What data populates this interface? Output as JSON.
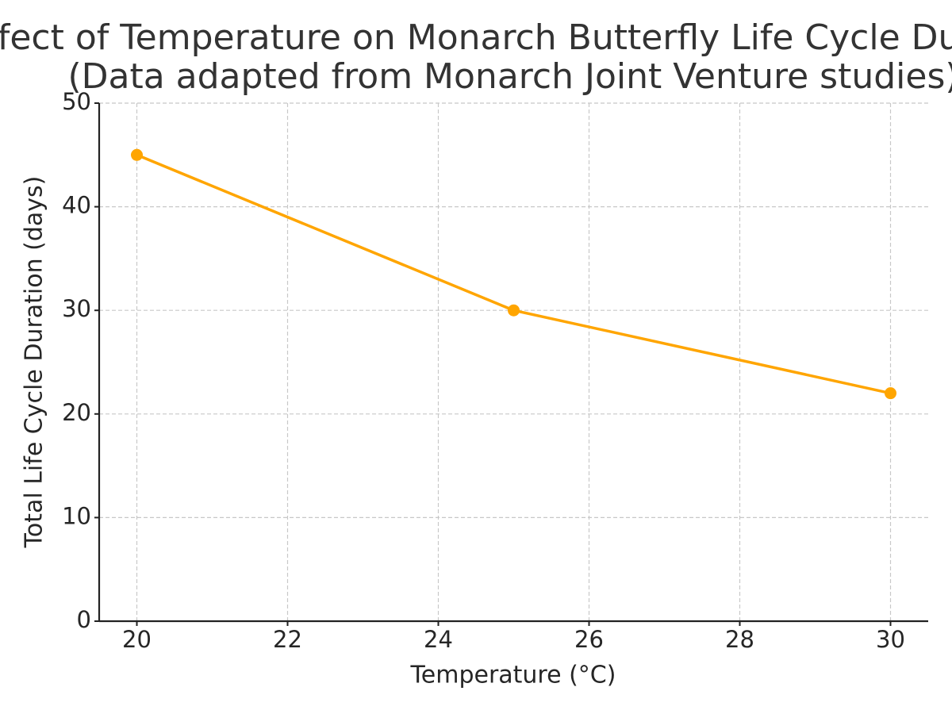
{
  "chart_data": {
    "type": "line",
    "title": "Effect of Temperature on Monarch Butterfly Life Cycle Duration",
    "subtitle": "(Data adapted from Monarch Joint Venture studies)",
    "x_label": "Temperature (°C)",
    "y_label": "Total Life Cycle Duration (days)",
    "x": [
      20,
      25,
      30
    ],
    "series": [
      {
        "color": "#ffa500",
        "values": [
          45,
          30,
          22
        ]
      }
    ],
    "xlim": [
      19.5,
      30.5
    ],
    "xticks": [
      20,
      22,
      24,
      26,
      28,
      30
    ],
    "ylim": [
      0,
      50
    ],
    "yticks": [
      0,
      10,
      20,
      30,
      40,
      50
    ],
    "grid": true
  }
}
